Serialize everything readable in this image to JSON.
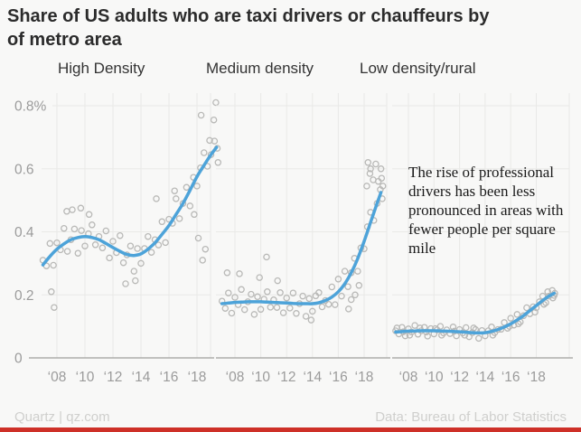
{
  "header": {
    "title_line1": "Share of US adults who are taxi drivers or chauffeurs by",
    "title_line2": "of metro area"
  },
  "footer": {
    "source_left": "Quartz | qz.com",
    "source_right": "Data: Bureau of Labor Statistics"
  },
  "colors": {
    "background": "#f8f8f7",
    "trend_line": "#4da3d9",
    "point_stroke": "#b9b9b7",
    "grid": "#e9e9e7",
    "axis": "#adadab",
    "tick_label": "#9b9b9b",
    "brand_bar": "#ce3028"
  },
  "chart_data": {
    "type": "scatter",
    "subtype": "small-multiples scatter with loess smooth line",
    "title": "Share of US adults who are taxi drivers or chauffeurs by of metro area",
    "units": "percent of adults",
    "annotation": "The rise of professional drivers has been less pronounced in areas with fewer people per square mile",
    "x_axis": {
      "tick_years": [
        2008,
        2010,
        2012,
        2014,
        2016,
        2018
      ],
      "tick_labels": [
        "‘08",
        "‘10",
        "‘12",
        "‘14",
        "‘16",
        "‘18"
      ],
      "range": [
        2007,
        2019.6
      ]
    },
    "y_axis": {
      "tick_values": [
        0.8,
        0.6,
        0.4,
        0.2,
        0
      ],
      "tick_labels": [
        "0.8%",
        "0.6",
        "0.4",
        "0.2",
        "0"
      ],
      "range": [
        0,
        0.85
      ],
      "grid": true
    },
    "panels": [
      {
        "label": "High Density",
        "trend": [
          [
            2007,
            0.295
          ],
          [
            2007.5,
            0.322
          ],
          [
            2008,
            0.345
          ],
          [
            2008.5,
            0.362
          ],
          [
            2009,
            0.375
          ],
          [
            2009.5,
            0.382
          ],
          [
            2010,
            0.385
          ],
          [
            2010.5,
            0.382
          ],
          [
            2011,
            0.375
          ],
          [
            2011.5,
            0.363
          ],
          [
            2012,
            0.35
          ],
          [
            2012.5,
            0.338
          ],
          [
            2013,
            0.328
          ],
          [
            2013.5,
            0.325
          ],
          [
            2014,
            0.33
          ],
          [
            2014.5,
            0.345
          ],
          [
            2015,
            0.365
          ],
          [
            2015.5,
            0.392
          ],
          [
            2016,
            0.42
          ],
          [
            2016.5,
            0.455
          ],
          [
            2017,
            0.49
          ],
          [
            2017.5,
            0.532
          ],
          [
            2018,
            0.575
          ],
          [
            2018.5,
            0.611
          ],
          [
            2019,
            0.645
          ],
          [
            2019.4,
            0.668
          ]
        ],
        "points": [
          [
            2007.0,
            0.31
          ],
          [
            2007.25,
            0.292
          ],
          [
            2007.5,
            0.363
          ],
          [
            2007.75,
            0.294
          ],
          [
            2008.0,
            0.365
          ],
          [
            2008.25,
            0.343
          ],
          [
            2008.5,
            0.411
          ],
          [
            2008.75,
            0.338
          ],
          [
            2009.0,
            0.375
          ],
          [
            2009.25,
            0.409
          ],
          [
            2009.5,
            0.332
          ],
          [
            2009.75,
            0.404
          ],
          [
            2010.0,
            0.355
          ],
          [
            2010.25,
            0.394
          ],
          [
            2010.5,
            0.422
          ],
          [
            2010.75,
            0.359
          ],
          [
            2011.0,
            0.385
          ],
          [
            2011.25,
            0.349
          ],
          [
            2011.5,
            0.403
          ],
          [
            2011.75,
            0.317
          ],
          [
            2012.0,
            0.37
          ],
          [
            2012.25,
            0.334
          ],
          [
            2012.5,
            0.388
          ],
          [
            2012.75,
            0.302
          ],
          [
            2013.0,
            0.327
          ],
          [
            2013.25,
            0.355
          ],
          [
            2013.5,
            0.275
          ],
          [
            2013.75,
            0.347
          ],
          [
            2014.0,
            0.3
          ],
          [
            2014.25,
            0.347
          ],
          [
            2014.5,
            0.385
          ],
          [
            2014.75,
            0.335
          ],
          [
            2015.0,
            0.375
          ],
          [
            2015.25,
            0.358
          ],
          [
            2015.5,
            0.432
          ],
          [
            2015.75,
            0.366
          ],
          [
            2016.0,
            0.44
          ],
          [
            2016.25,
            0.427
          ],
          [
            2016.5,
            0.505
          ],
          [
            2016.75,
            0.442
          ],
          [
            2017.0,
            0.49
          ],
          [
            2017.25,
            0.541
          ],
          [
            2017.5,
            0.482
          ],
          [
            2017.75,
            0.573
          ],
          [
            2018.0,
            0.545
          ],
          [
            2018.25,
            0.603
          ],
          [
            2018.5,
            0.651
          ],
          [
            2018.75,
            0.608
          ],
          [
            2019.0,
            0.645
          ],
          [
            2019.25,
            0.688
          ],
          [
            2019.5,
            0.62
          ],
          [
            2007.6,
            0.21
          ],
          [
            2007.8,
            0.16
          ],
          [
            2008.7,
            0.465
          ],
          [
            2009.1,
            0.47
          ],
          [
            2009.7,
            0.475
          ],
          [
            2010.3,
            0.455
          ],
          [
            2012.9,
            0.235
          ],
          [
            2013.6,
            0.245
          ],
          [
            2015.1,
            0.505
          ],
          [
            2016.4,
            0.53
          ],
          [
            2017.8,
            0.455
          ],
          [
            2018.1,
            0.38
          ],
          [
            2018.4,
            0.31
          ],
          [
            2018.6,
            0.345
          ],
          [
            2018.3,
            0.77
          ],
          [
            2018.9,
            0.69
          ],
          [
            2019.2,
            0.755
          ],
          [
            2019.35,
            0.81
          ],
          [
            2019.45,
            0.665
          ]
        ]
      },
      {
        "label": "Medium density",
        "trend": [
          [
            2007,
            0.172
          ],
          [
            2007.5,
            0.174
          ],
          [
            2008,
            0.176
          ],
          [
            2008.5,
            0.177
          ],
          [
            2009,
            0.178
          ],
          [
            2009.5,
            0.178
          ],
          [
            2010,
            0.178
          ],
          [
            2010.5,
            0.177
          ],
          [
            2011,
            0.176
          ],
          [
            2011.5,
            0.175
          ],
          [
            2012,
            0.174
          ],
          [
            2012.5,
            0.173
          ],
          [
            2013,
            0.172
          ],
          [
            2013.5,
            0.172
          ],
          [
            2014,
            0.172
          ],
          [
            2014.5,
            0.175
          ],
          [
            2015,
            0.182
          ],
          [
            2015.5,
            0.193
          ],
          [
            2016,
            0.21
          ],
          [
            2016.5,
            0.235
          ],
          [
            2017,
            0.27
          ],
          [
            2017.5,
            0.315
          ],
          [
            2018,
            0.37
          ],
          [
            2018.5,
            0.43
          ],
          [
            2019,
            0.49
          ],
          [
            2019.3,
            0.525
          ]
        ],
        "points": [
          [
            2007.0,
            0.18
          ],
          [
            2007.25,
            0.157
          ],
          [
            2007.5,
            0.206
          ],
          [
            2007.75,
            0.142
          ],
          [
            2008.0,
            0.192
          ],
          [
            2008.25,
            0.169
          ],
          [
            2008.5,
            0.217
          ],
          [
            2008.75,
            0.153
          ],
          [
            2009.0,
            0.178
          ],
          [
            2009.25,
            0.202
          ],
          [
            2009.5,
            0.138
          ],
          [
            2009.75,
            0.194
          ],
          [
            2010.0,
            0.154
          ],
          [
            2010.25,
            0.186
          ],
          [
            2010.5,
            0.21
          ],
          [
            2010.75,
            0.161
          ],
          [
            2011.0,
            0.184
          ],
          [
            2011.25,
            0.16
          ],
          [
            2011.5,
            0.207
          ],
          [
            2011.75,
            0.143
          ],
          [
            2012.0,
            0.19
          ],
          [
            2012.25,
            0.158
          ],
          [
            2012.5,
            0.206
          ],
          [
            2012.75,
            0.141
          ],
          [
            2013.0,
            0.172
          ],
          [
            2013.25,
            0.196
          ],
          [
            2013.5,
            0.132
          ],
          [
            2013.75,
            0.188
          ],
          [
            2014.0,
            0.148
          ],
          [
            2014.25,
            0.197
          ],
          [
            2014.5,
            0.207
          ],
          [
            2014.75,
            0.162
          ],
          [
            2015.0,
            0.182
          ],
          [
            2015.25,
            0.17
          ],
          [
            2015.5,
            0.225
          ],
          [
            2015.75,
            0.169
          ],
          [
            2016.0,
            0.25
          ],
          [
            2016.25,
            0.196
          ],
          [
            2016.5,
            0.275
          ],
          [
            2016.75,
            0.226
          ],
          [
            2017.0,
            0.27
          ],
          [
            2017.25,
            0.316
          ],
          [
            2017.5,
            0.275
          ],
          [
            2017.75,
            0.349
          ],
          [
            2018.0,
            0.346
          ],
          [
            2018.25,
            0.416
          ],
          [
            2018.5,
            0.462
          ],
          [
            2018.75,
            0.436
          ],
          [
            2019.0,
            0.49
          ],
          [
            2019.25,
            0.534
          ],
          [
            2019.4,
            0.505
          ],
          [
            2007.4,
            0.27
          ],
          [
            2008.35,
            0.267
          ],
          [
            2009.9,
            0.255
          ],
          [
            2010.45,
            0.32
          ],
          [
            2011.3,
            0.245
          ],
          [
            2013.9,
            0.12
          ],
          [
            2016.8,
            0.155
          ],
          [
            2017.0,
            0.185
          ],
          [
            2017.3,
            0.2
          ],
          [
            2017.6,
            0.23
          ],
          [
            2018.2,
            0.545
          ],
          [
            2018.3,
            0.62
          ],
          [
            2018.45,
            0.585
          ],
          [
            2018.5,
            0.6
          ],
          [
            2018.7,
            0.565
          ],
          [
            2019.1,
            0.56
          ],
          [
            2019.3,
            0.6
          ],
          [
            2019.35,
            0.57
          ],
          [
            2018.9,
            0.615
          ],
          [
            2019.45,
            0.545
          ]
        ]
      },
      {
        "label": "Low density/rural",
        "trend": [
          [
            2007,
            0.082
          ],
          [
            2007.5,
            0.0835
          ],
          [
            2008,
            0.085
          ],
          [
            2008.5,
            0.0855
          ],
          [
            2009,
            0.086
          ],
          [
            2009.5,
            0.086
          ],
          [
            2010,
            0.086
          ],
          [
            2010.5,
            0.0855
          ],
          [
            2011,
            0.085
          ],
          [
            2011.5,
            0.084
          ],
          [
            2012,
            0.083
          ],
          [
            2012.5,
            0.0815
          ],
          [
            2013,
            0.08
          ],
          [
            2013.5,
            0.079
          ],
          [
            2014,
            0.08
          ],
          [
            2014.5,
            0.084
          ],
          [
            2015,
            0.09
          ],
          [
            2015.5,
            0.098
          ],
          [
            2016,
            0.108
          ],
          [
            2016.5,
            0.12
          ],
          [
            2017,
            0.134
          ],
          [
            2017.5,
            0.15
          ],
          [
            2018,
            0.166
          ],
          [
            2018.5,
            0.182
          ],
          [
            2019,
            0.196
          ],
          [
            2019.4,
            0.205
          ]
        ],
        "points": [
          [
            2007.0,
            0.086
          ],
          [
            2007.25,
            0.076
          ],
          [
            2007.5,
            0.097
          ],
          [
            2007.75,
            0.07
          ],
          [
            2008.0,
            0.092
          ],
          [
            2008.25,
            0.082
          ],
          [
            2008.5,
            0.103
          ],
          [
            2008.75,
            0.075
          ],
          [
            2009.0,
            0.086
          ],
          [
            2009.25,
            0.097
          ],
          [
            2009.5,
            0.069
          ],
          [
            2009.75,
            0.093
          ],
          [
            2010.0,
            0.076
          ],
          [
            2010.25,
            0.089
          ],
          [
            2010.5,
            0.1
          ],
          [
            2010.75,
            0.079
          ],
          [
            2011.0,
            0.089
          ],
          [
            2011.25,
            0.077
          ],
          [
            2011.5,
            0.098
          ],
          [
            2011.75,
            0.07
          ],
          [
            2012.0,
            0.09
          ],
          [
            2012.25,
            0.079
          ],
          [
            2012.5,
            0.096
          ],
          [
            2012.75,
            0.067
          ],
          [
            2013.0,
            0.08
          ],
          [
            2013.25,
            0.09
          ],
          [
            2013.5,
            0.062
          ],
          [
            2013.75,
            0.087
          ],
          [
            2014.0,
            0.07
          ],
          [
            2014.25,
            0.086
          ],
          [
            2014.5,
            0.098
          ],
          [
            2014.75,
            0.08
          ],
          [
            2015.0,
            0.09
          ],
          [
            2015.25,
            0.091
          ],
          [
            2015.5,
            0.112
          ],
          [
            2015.75,
            0.094
          ],
          [
            2016.0,
            0.126
          ],
          [
            2016.25,
            0.104
          ],
          [
            2016.5,
            0.138
          ],
          [
            2016.75,
            0.114
          ],
          [
            2017.0,
            0.134
          ],
          [
            2017.25,
            0.159
          ],
          [
            2017.5,
            0.14
          ],
          [
            2017.75,
            0.162
          ],
          [
            2018.0,
            0.159
          ],
          [
            2018.25,
            0.178
          ],
          [
            2018.5,
            0.196
          ],
          [
            2018.75,
            0.175
          ],
          [
            2019.0,
            0.196
          ],
          [
            2019.25,
            0.214
          ],
          [
            2019.4,
            0.198
          ],
          [
            2007.1,
            0.095
          ],
          [
            2007.6,
            0.083
          ],
          [
            2008.1,
            0.072
          ],
          [
            2008.9,
            0.095
          ],
          [
            2009.4,
            0.082
          ],
          [
            2010.1,
            0.093
          ],
          [
            2010.6,
            0.072
          ],
          [
            2011.6,
            0.085
          ],
          [
            2012.4,
            0.072
          ],
          [
            2013.1,
            0.095
          ],
          [
            2014.6,
            0.072
          ],
          [
            2015.9,
            0.1
          ],
          [
            2016.6,
            0.108
          ],
          [
            2017.9,
            0.145
          ],
          [
            2018.6,
            0.17
          ],
          [
            2018.9,
            0.21
          ],
          [
            2019.3,
            0.19
          ],
          [
            2019.45,
            0.205
          ]
        ]
      }
    ],
    "legend": "none",
    "grid": "on"
  }
}
